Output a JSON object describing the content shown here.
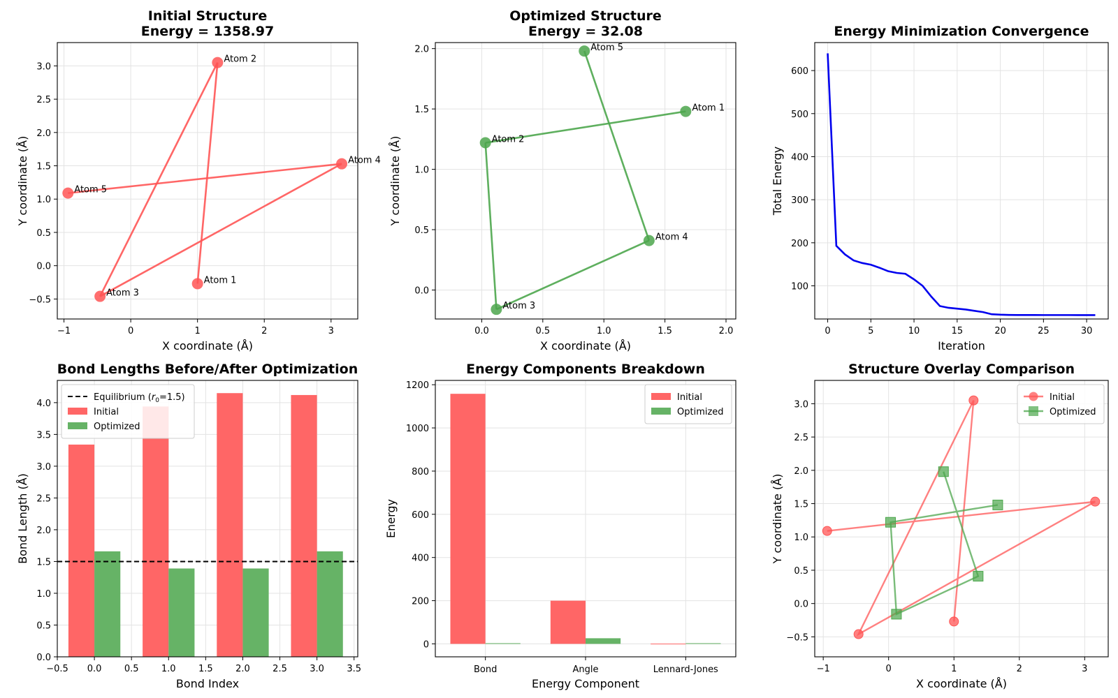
{
  "chart_data": [
    {
      "type": "scatter",
      "title": "Initial Structure\nEnergy = 1358.97",
      "xlabel": "X coordinate (Å)",
      "ylabel": "Y coordinate (Å)",
      "xlim": [
        -1.1,
        3.4
      ],
      "ylim": [
        -0.8,
        3.35
      ],
      "xticks": [
        -1,
        0,
        1,
        2,
        3
      ],
      "yticks": [
        -0.5,
        0.0,
        0.5,
        1.0,
        1.5,
        2.0,
        2.5,
        3.0
      ],
      "ytick_labels": [
        "−0.5",
        "0.0",
        "0.5",
        "1.0",
        "1.5",
        "2.0",
        "2.5",
        "3.0"
      ],
      "xtick_labels": [
        "−1",
        "0",
        "1",
        "2",
        "3"
      ],
      "grid": true,
      "color": "#ff5555",
      "atoms": [
        {
          "label": "Atom 1",
          "x": 1.0,
          "y": -0.27
        },
        {
          "label": "Atom 2",
          "x": 1.3,
          "y": 3.05
        },
        {
          "label": "Atom 3",
          "x": -0.46,
          "y": -0.46
        },
        {
          "label": "Atom 4",
          "x": 3.16,
          "y": 1.53
        },
        {
          "label": "Atom 5",
          "x": -0.94,
          "y": 1.09
        }
      ],
      "bonds": [
        [
          0,
          1
        ],
        [
          1,
          2
        ],
        [
          2,
          3
        ],
        [
          3,
          4
        ]
      ]
    },
    {
      "type": "scatter",
      "title": "Optimized Structure\nEnergy = 32.08",
      "xlabel": "X coordinate (Å)",
      "ylabel": "Y coordinate (Å)",
      "xlim": [
        -0.38,
        2.08
      ],
      "ylim": [
        -0.24,
        2.05
      ],
      "xticks": [
        0.0,
        0.5,
        1.0,
        1.5,
        2.0
      ],
      "xtick_labels": [
        "0.0",
        "0.5",
        "1.0",
        "1.5",
        "2.0"
      ],
      "yticks": [
        0.0,
        0.5,
        1.0,
        1.5,
        2.0
      ],
      "ytick_labels": [
        "0.0",
        "0.5",
        "1.0",
        "1.5",
        "2.0"
      ],
      "grid": true,
      "color": "#4ca64c",
      "atoms": [
        {
          "label": "Atom 1",
          "x": 1.67,
          "y": 1.48
        },
        {
          "label": "Atom 2",
          "x": 0.03,
          "y": 1.22
        },
        {
          "label": "Atom 3",
          "x": 0.12,
          "y": -0.16
        },
        {
          "label": "Atom 4",
          "x": 1.37,
          "y": 0.41
        },
        {
          "label": "Atom 5",
          "x": 0.84,
          "y": 1.98
        }
      ],
      "bonds": [
        [
          0,
          1
        ],
        [
          1,
          2
        ],
        [
          2,
          3
        ],
        [
          3,
          4
        ]
      ]
    },
    {
      "type": "line",
      "title": "Energy Minimization Convergence",
      "xlabel": "Iteration",
      "ylabel": "Total Energy",
      "xlim": [
        -1.5,
        32.5
      ],
      "ylim": [
        23,
        665
      ],
      "xticks": [
        0,
        5,
        10,
        15,
        20,
        25,
        30
      ],
      "xtick_labels": [
        "0",
        "5",
        "10",
        "15",
        "20",
        "25",
        "30"
      ],
      "yticks": [
        100,
        200,
        300,
        400,
        500,
        600
      ],
      "ytick_labels": [
        "100",
        "200",
        "300",
        "400",
        "500",
        "600"
      ],
      "grid": true,
      "color": "#0000ee",
      "x": [
        0,
        1,
        2,
        3,
        4,
        5,
        6,
        7,
        8,
        9,
        10,
        11,
        12,
        13,
        14,
        15,
        16,
        17,
        18,
        19,
        20,
        21,
        22,
        23,
        24,
        25,
        26,
        27,
        28,
        29,
        30,
        31
      ],
      "y": [
        640,
        193,
        173,
        159,
        153,
        149,
        142,
        134,
        130,
        128,
        115,
        100,
        75,
        53,
        49,
        47,
        45,
        42,
        39,
        34,
        33,
        32.5,
        32.3,
        32.2,
        32.2,
        32.1,
        32.1,
        32.1,
        32.1,
        32.08,
        32.08,
        32.08
      ]
    },
    {
      "type": "bar",
      "title": "Bond Lengths Before/After Optimization",
      "xlabel": "Bond Index",
      "ylabel": "Bond Length (Å)",
      "xlim": [
        -0.5,
        3.55
      ],
      "ylim": [
        0,
        4.35
      ],
      "xticks": [
        -0.5,
        0.0,
        0.5,
        1.0,
        1.5,
        2.0,
        2.5,
        3.0,
        3.5
      ],
      "xtick_labels": [
        "−0.5",
        "0.0",
        "0.5",
        "1.0",
        "1.5",
        "2.0",
        "2.5",
        "3.0",
        "3.5"
      ],
      "yticks": [
        0.0,
        0.5,
        1.0,
        1.5,
        2.0,
        2.5,
        3.0,
        3.5,
        4.0
      ],
      "ytick_labels": [
        "0.0",
        "0.5",
        "1.0",
        "1.5",
        "2.0",
        "2.5",
        "3.0",
        "3.5",
        "4.0"
      ],
      "grid": true,
      "categories": [
        0,
        1,
        2,
        3
      ],
      "bar_width": 0.35,
      "series": [
        {
          "name": "Initial",
          "color": "#ff6666",
          "values": [
            3.34,
            3.94,
            4.15,
            4.12
          ]
        },
        {
          "name": "Optimized",
          "color": "#66b366",
          "values": [
            1.66,
            1.39,
            1.39,
            1.66
          ]
        }
      ],
      "hline": {
        "label": "Equilibrium (",
        "math": "r",
        "sub": "0",
        "after": "=1.5)",
        "y": 1.5
      },
      "legend_loc": "upper-left"
    },
    {
      "type": "bar",
      "title": "Energy Components Breakdown",
      "xlabel": "Energy Component",
      "ylabel": "Energy",
      "xlim": [
        -0.5,
        2.5
      ],
      "ylim": [
        -60,
        1220
      ],
      "yticks": [
        0,
        200,
        400,
        600,
        800,
        1000,
        1200
      ],
      "ytick_labels": [
        "0",
        "200",
        "400",
        "600",
        "800",
        "1000",
        "1200"
      ],
      "grid": true,
      "categories": [
        "Bond",
        "Angle",
        "Lennard-Jones"
      ],
      "bar_width": 0.35,
      "series": [
        {
          "name": "Initial",
          "color": "#ff6666",
          "values": [
            1158,
            200,
            1
          ]
        },
        {
          "name": "Optimized",
          "color": "#66b366",
          "values": [
            3,
            26,
            3
          ]
        }
      ],
      "legend_loc": "upper-right"
    },
    {
      "type": "line",
      "title": "Structure Overlay Comparison",
      "xlabel": "X coordinate (Å)",
      "ylabel": "Y coordinate (Å)",
      "xlim": [
        -1.13,
        3.36
      ],
      "ylim": [
        -0.8,
        3.35
      ],
      "xticks": [
        -1,
        0,
        1,
        2,
        3
      ],
      "xtick_labels": [
        "−1",
        "0",
        "1",
        "2",
        "3"
      ],
      "yticks": [
        -0.5,
        0.0,
        0.5,
        1.0,
        1.5,
        2.0,
        2.5,
        3.0
      ],
      "ytick_labels": [
        "−0.5",
        "0.0",
        "0.5",
        "1.0",
        "1.5",
        "2.0",
        "2.5",
        "3.0"
      ],
      "grid": true,
      "series": [
        {
          "name": "Initial",
          "color": "#ff5555",
          "marker": "circle",
          "x": [
            1.0,
            1.3,
            -0.46,
            3.16,
            -0.94
          ],
          "y": [
            -0.27,
            3.05,
            -0.46,
            1.53,
            1.09
          ]
        },
        {
          "name": "Optimized",
          "color": "#4ca64c",
          "marker": "square",
          "x": [
            1.67,
            0.03,
            0.12,
            1.37,
            0.84
          ],
          "y": [
            1.48,
            1.22,
            -0.16,
            0.41,
            1.98
          ]
        }
      ],
      "legend_loc": "upper-right"
    }
  ]
}
